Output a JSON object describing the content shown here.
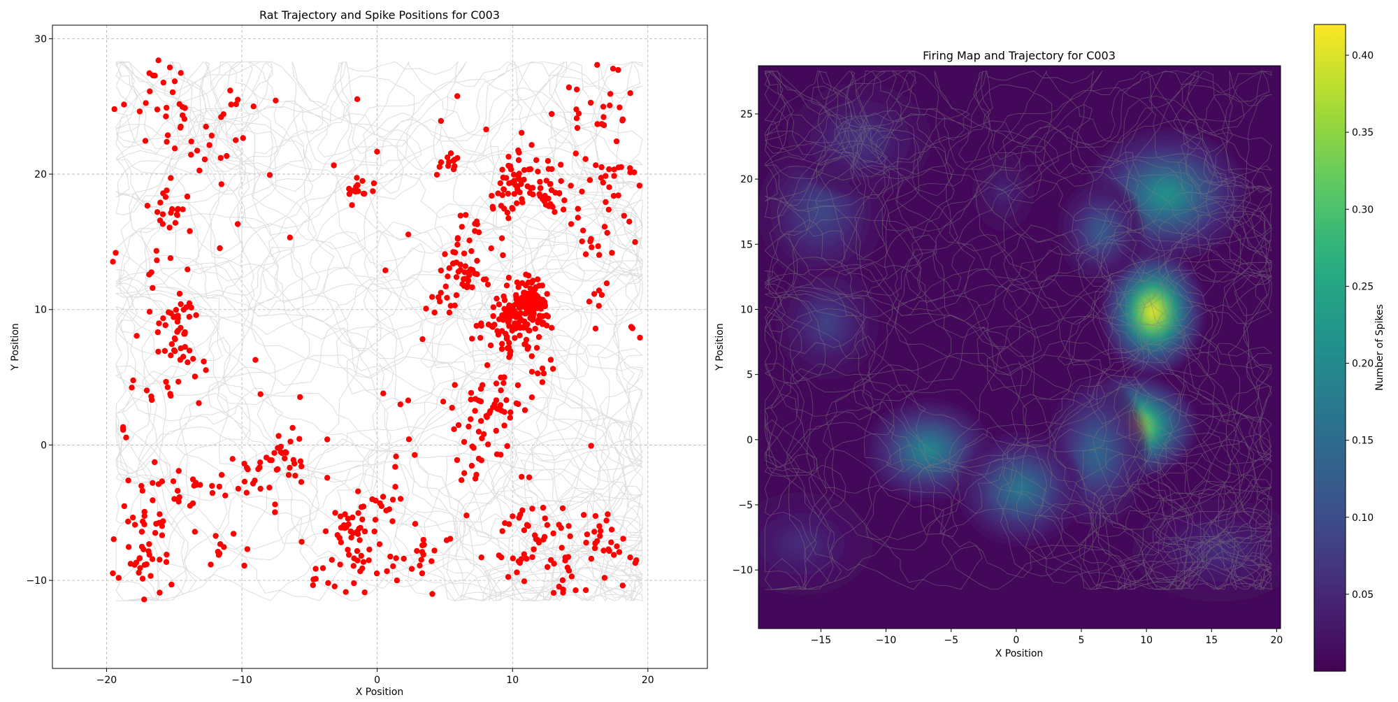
{
  "chart_data": [
    {
      "type": "scatter",
      "title": "Rat Trajectory and Spike Positions for  C003",
      "xlabel": "X Position",
      "ylabel": "Y Position",
      "xlim": [
        -24,
        24.4
      ],
      "ylim": [
        -16.5,
        31.0
      ],
      "xticks": [
        -20,
        -10,
        0,
        10,
        20
      ],
      "yticks": [
        -10,
        0,
        10,
        20,
        30
      ],
      "xtick_labels": [
        "−20",
        "−10",
        "0",
        "10",
        "20"
      ],
      "ytick_labels": [
        "−10",
        "0",
        "10",
        "20",
        "30"
      ],
      "grid": true,
      "trajectory_color": "#d9d9d9",
      "spike_color": "#ff0000",
      "spike_clusters": [
        {
          "x": 11.0,
          "y": 10.2,
          "spread": 0.9,
          "count": 140
        },
        {
          "x": 10.0,
          "y": 8.0,
          "spread": 1.2,
          "count": 50
        },
        {
          "x": 10.5,
          "y": 20.0,
          "spread": 1.1,
          "count": 40
        },
        {
          "x": 13.0,
          "y": 18.5,
          "spread": 0.9,
          "count": 30
        },
        {
          "x": 9.0,
          "y": 18.5,
          "spread": 0.9,
          "count": 15
        },
        {
          "x": 6.5,
          "y": 13.0,
          "spread": 0.9,
          "count": 35
        },
        {
          "x": 6.5,
          "y": 15.5,
          "spread": 1.0,
          "count": 15
        },
        {
          "x": 5.5,
          "y": 20.8,
          "spread": 0.5,
          "count": 12
        },
        {
          "x": 4.8,
          "y": 10.5,
          "spread": 0.6,
          "count": 12
        },
        {
          "x": 8.5,
          "y": 2.5,
          "spread": 1.3,
          "count": 45
        },
        {
          "x": 6.5,
          "y": -1.0,
          "spread": 1.5,
          "count": 12
        },
        {
          "x": 17.0,
          "y": 20.0,
          "spread": 1.3,
          "count": 25
        },
        {
          "x": 16.0,
          "y": 15.5,
          "spread": 1.1,
          "count": 15
        },
        {
          "x": 16.5,
          "y": 26.0,
          "spread": 1.4,
          "count": 20
        },
        {
          "x": 16.8,
          "y": 11.0,
          "spread": 0.8,
          "count": 6
        },
        {
          "x": -15.0,
          "y": 9.5,
          "spread": 0.8,
          "count": 25
        },
        {
          "x": -14.5,
          "y": 7.0,
          "spread": 0.7,
          "count": 18
        },
        {
          "x": -15.5,
          "y": 4.5,
          "spread": 1.2,
          "count": 12
        },
        {
          "x": -15.5,
          "y": 17.0,
          "spread": 1.0,
          "count": 20
        },
        {
          "x": -14.0,
          "y": 23.5,
          "spread": 1.4,
          "count": 15
        },
        {
          "x": -15.5,
          "y": 27.0,
          "spread": 1.0,
          "count": 12
        },
        {
          "x": -18.0,
          "y": 24.0,
          "spread": 1.0,
          "count": 6
        },
        {
          "x": -16.0,
          "y": -4.5,
          "spread": 1.3,
          "count": 25
        },
        {
          "x": -17.0,
          "y": -8.5,
          "spread": 1.2,
          "count": 30
        },
        {
          "x": -13.5,
          "y": -3.0,
          "spread": 0.9,
          "count": 12
        },
        {
          "x": -11.0,
          "y": -8.5,
          "spread": 1.0,
          "count": 10
        },
        {
          "x": -7.0,
          "y": -1.0,
          "spread": 1.2,
          "count": 30
        },
        {
          "x": -9.0,
          "y": -2.5,
          "spread": 1.0,
          "count": 12
        },
        {
          "x": -1.5,
          "y": 18.8,
          "spread": 0.5,
          "count": 15
        },
        {
          "x": -1.8,
          "y": -6.0,
          "spread": 0.8,
          "count": 25
        },
        {
          "x": 0.5,
          "y": -4.0,
          "spread": 1.0,
          "count": 15
        },
        {
          "x": 0.5,
          "y": -8.5,
          "spread": 1.3,
          "count": 20
        },
        {
          "x": -3.0,
          "y": -9.0,
          "spread": 1.3,
          "count": 12
        },
        {
          "x": 11.5,
          "y": -6.0,
          "spread": 1.0,
          "count": 20
        },
        {
          "x": 14.0,
          "y": -9.0,
          "spread": 1.3,
          "count": 25
        },
        {
          "x": 16.5,
          "y": -7.0,
          "spread": 1.0,
          "count": 20
        },
        {
          "x": 10.5,
          "y": -8.5,
          "spread": 1.5,
          "count": 15
        },
        {
          "x": 19.0,
          "y": -8.5,
          "spread": 0.5,
          "count": 4
        },
        {
          "x": 19.0,
          "y": 8.5,
          "spread": 0.4,
          "count": 3
        },
        {
          "x": 12.5,
          "y": 5.5,
          "spread": 0.5,
          "count": 6
        },
        {
          "x": 3.5,
          "y": -8.5,
          "spread": 1.0,
          "count": 10
        },
        {
          "x": -10.0,
          "y": 24.5,
          "spread": 1.0,
          "count": 8
        },
        {
          "x": -12.0,
          "y": 21.0,
          "spread": 1.0,
          "count": 6
        },
        {
          "x": -19.0,
          "y": 1.0,
          "spread": 0.5,
          "count": 4
        },
        {
          "x": -18.0,
          "y": 13.0,
          "spread": 1.0,
          "count": 6
        }
      ],
      "scattered_spike_count": 60
    },
    {
      "type": "heatmap",
      "title": "Firing Map and Trajectory for  C003",
      "xlabel": "X Position",
      "ylabel": "Y Position",
      "xlim": [
        -19.8,
        20.3
      ],
      "ylim": [
        -14.5,
        28.7
      ],
      "xticks": [
        -15,
        -10,
        -5,
        0,
        5,
        10,
        15,
        20
      ],
      "yticks": [
        -10,
        -5,
        0,
        5,
        10,
        15,
        20,
        25
      ],
      "xtick_labels": [
        "−15",
        "−10",
        "−5",
        "0",
        "5",
        "10",
        "15",
        "20"
      ],
      "ytick_labels": [
        "−10",
        "−5",
        "0",
        "5",
        "10",
        "15",
        "20",
        "25"
      ],
      "colormap": "viridis",
      "colorbar_label": "Number of Spikes",
      "colorbar_range": [
        0.0,
        0.42
      ],
      "colorbar_ticks": [
        0.05,
        0.1,
        0.15,
        0.2,
        0.25,
        0.3,
        0.35,
        0.4
      ],
      "colorbar_tick_labels": [
        "0.05",
        "0.10",
        "0.15",
        "0.20",
        "0.25",
        "0.30",
        "0.35",
        "0.40"
      ],
      "trajectory_color": "#808080",
      "hotspots": [
        {
          "x": 10.5,
          "y": 9.8,
          "sx": 1.8,
          "sy": 2.2,
          "value": 0.42
        },
        {
          "x": 8.8,
          "y": 1.0,
          "sx": 2.3,
          "sy": 1.8,
          "value": 0.42
        },
        {
          "x": 11.5,
          "y": 18.8,
          "sx": 2.8,
          "sy": 2.3,
          "value": 0.22
        },
        {
          "x": 6.5,
          "y": 16.0,
          "sx": 1.5,
          "sy": 1.8,
          "value": 0.12
        },
        {
          "x": 6.2,
          "y": -1.0,
          "sx": 1.8,
          "sy": 2.6,
          "value": 0.14
        },
        {
          "x": -6.8,
          "y": -0.8,
          "sx": 2.2,
          "sy": 1.8,
          "value": 0.2
        },
        {
          "x": 0.3,
          "y": -3.8,
          "sx": 2.2,
          "sy": 2.0,
          "value": 0.17
        },
        {
          "x": -15.0,
          "y": 17.5,
          "sx": 2.2,
          "sy": 2.5,
          "value": 0.09
        },
        {
          "x": -14.5,
          "y": 9.0,
          "sx": 1.8,
          "sy": 2.0,
          "value": 0.08
        },
        {
          "x": -12.0,
          "y": 23.0,
          "sx": 2.5,
          "sy": 2.0,
          "value": 0.06
        },
        {
          "x": -16.5,
          "y": -8.0,
          "sx": 2.5,
          "sy": 1.8,
          "value": 0.05
        },
        {
          "x": 15.5,
          "y": -8.5,
          "sx": 3.0,
          "sy": 1.8,
          "value": 0.05
        },
        {
          "x": -1.0,
          "y": 19.0,
          "sx": 1.2,
          "sy": 1.5,
          "value": 0.04
        }
      ]
    }
  ]
}
